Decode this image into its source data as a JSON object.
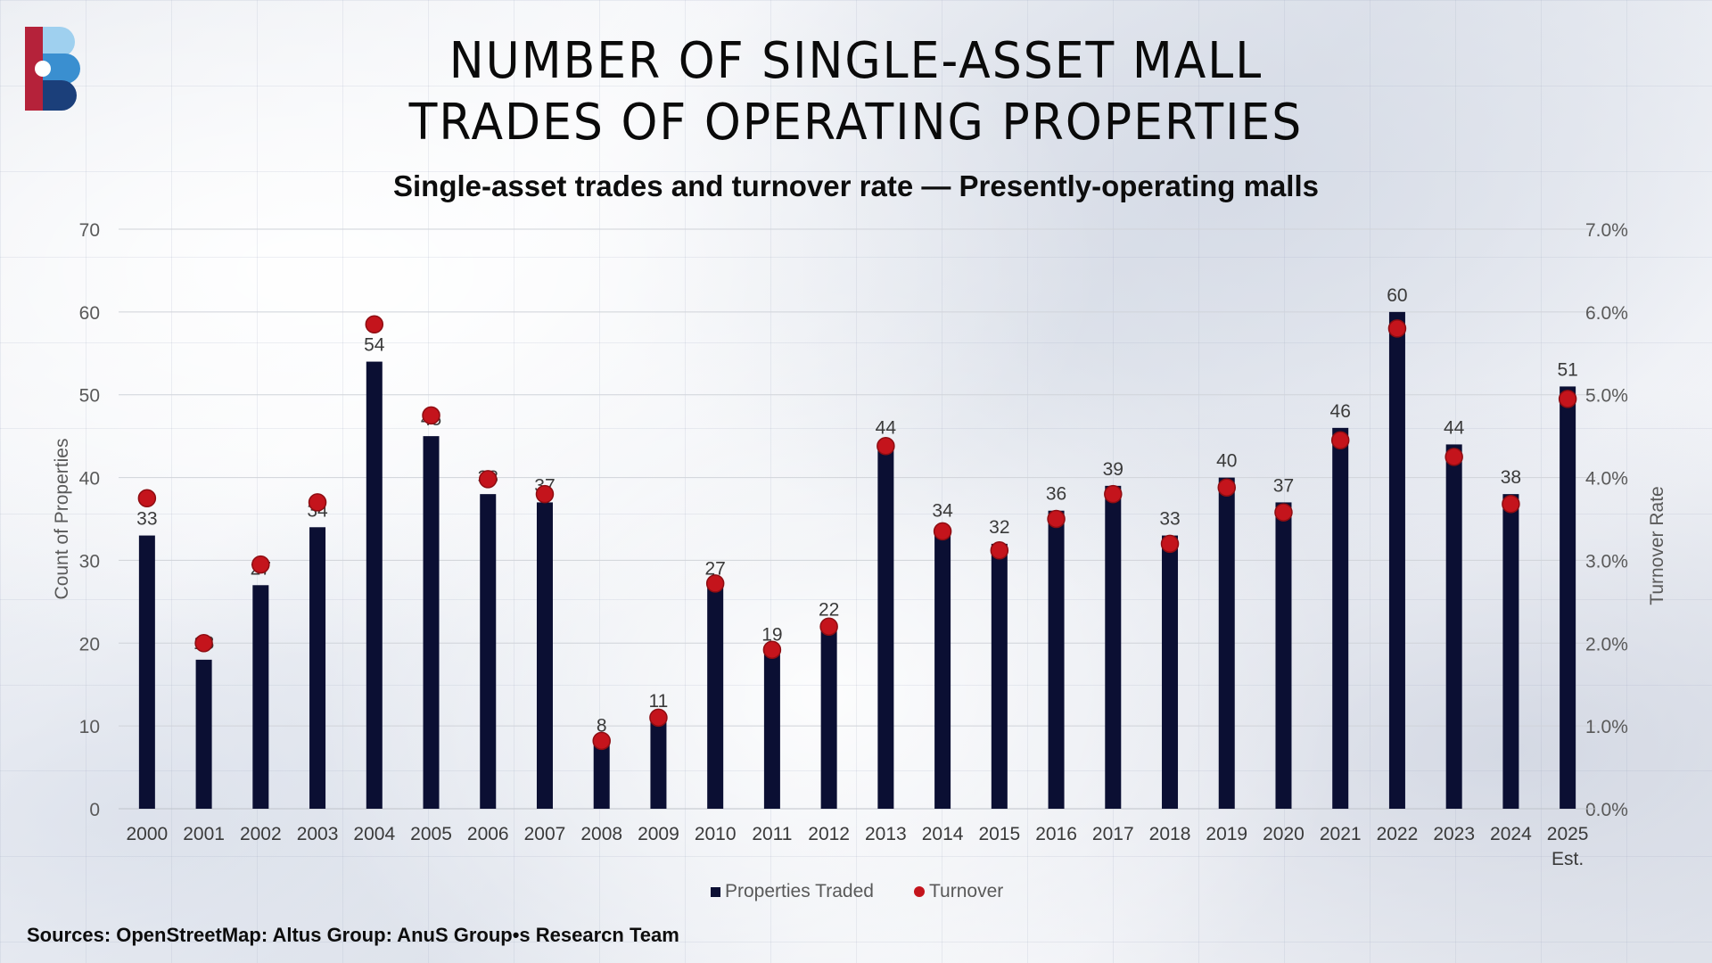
{
  "header": {
    "title_line1": "NUMBER OF SINGLE-ASSET MALL",
    "title_line2": "TRADES OF OPERATING PROPERTIES",
    "subtitle": "Single-asset trades and turnover rate — Presently-operating malls"
  },
  "footer": {
    "source": "Sources: OpenStreetMap: Altus Group: AnuS Group•s Researcn Team"
  },
  "logo": {
    "icon": "brand-logo-icon",
    "colors": [
      "#b5223a",
      "#1b3f7a",
      "#3a8fd0",
      "#9fd0ef"
    ]
  },
  "colors": {
    "bar": "#0b0f33",
    "marker": "#c4141c",
    "marker_edge": "#8e0d12",
    "axis_text": "#595959",
    "label_text": "#3a3a3a",
    "grid": "#d0d3d9"
  },
  "chart_data": {
    "type": "bar",
    "title": "Number of single-asset mall trades of operating properties",
    "categories": [
      "2000",
      "2001",
      "2002",
      "2003",
      "2004",
      "2005",
      "2006",
      "2007",
      "2008",
      "2009",
      "2010",
      "2011",
      "2012",
      "2013",
      "2014",
      "2015",
      "2016",
      "2017",
      "2018",
      "2019",
      "2020",
      "2021",
      "2022",
      "2023",
      "2024",
      "2025\nEst."
    ],
    "series": [
      {
        "name": "Properties Traded",
        "type": "bar",
        "axis": "left",
        "values": [
          33,
          18,
          27,
          34,
          54,
          45,
          38,
          37,
          8,
          11,
          27,
          19,
          22,
          44,
          34,
          32,
          36,
          39,
          33,
          40,
          37,
          46,
          60,
          44,
          38,
          51
        ]
      },
      {
        "name": "Turnover",
        "type": "scatter",
        "axis": "right",
        "values": [
          3.75,
          2.0,
          2.95,
          3.7,
          5.85,
          4.75,
          3.98,
          3.8,
          0.82,
          1.1,
          2.72,
          1.92,
          2.2,
          4.38,
          3.35,
          3.12,
          3.5,
          3.8,
          3.2,
          3.88,
          3.58,
          4.45,
          5.8,
          4.25,
          3.68,
          4.95
        ]
      }
    ],
    "ylabel": "Count of Properties",
    "ylim": [
      0,
      70
    ],
    "yticks": [
      0,
      10,
      20,
      30,
      40,
      50,
      60,
      70
    ],
    "y2label": "Turnover Rate",
    "y2lim": [
      0,
      7
    ],
    "y2ticks": [
      "0.0%",
      "1.0%",
      "2.0%",
      "3.0%",
      "4.0%",
      "5.0%",
      "6.0%",
      "7.0%"
    ],
    "grid": true,
    "legend": "bottom-center"
  }
}
